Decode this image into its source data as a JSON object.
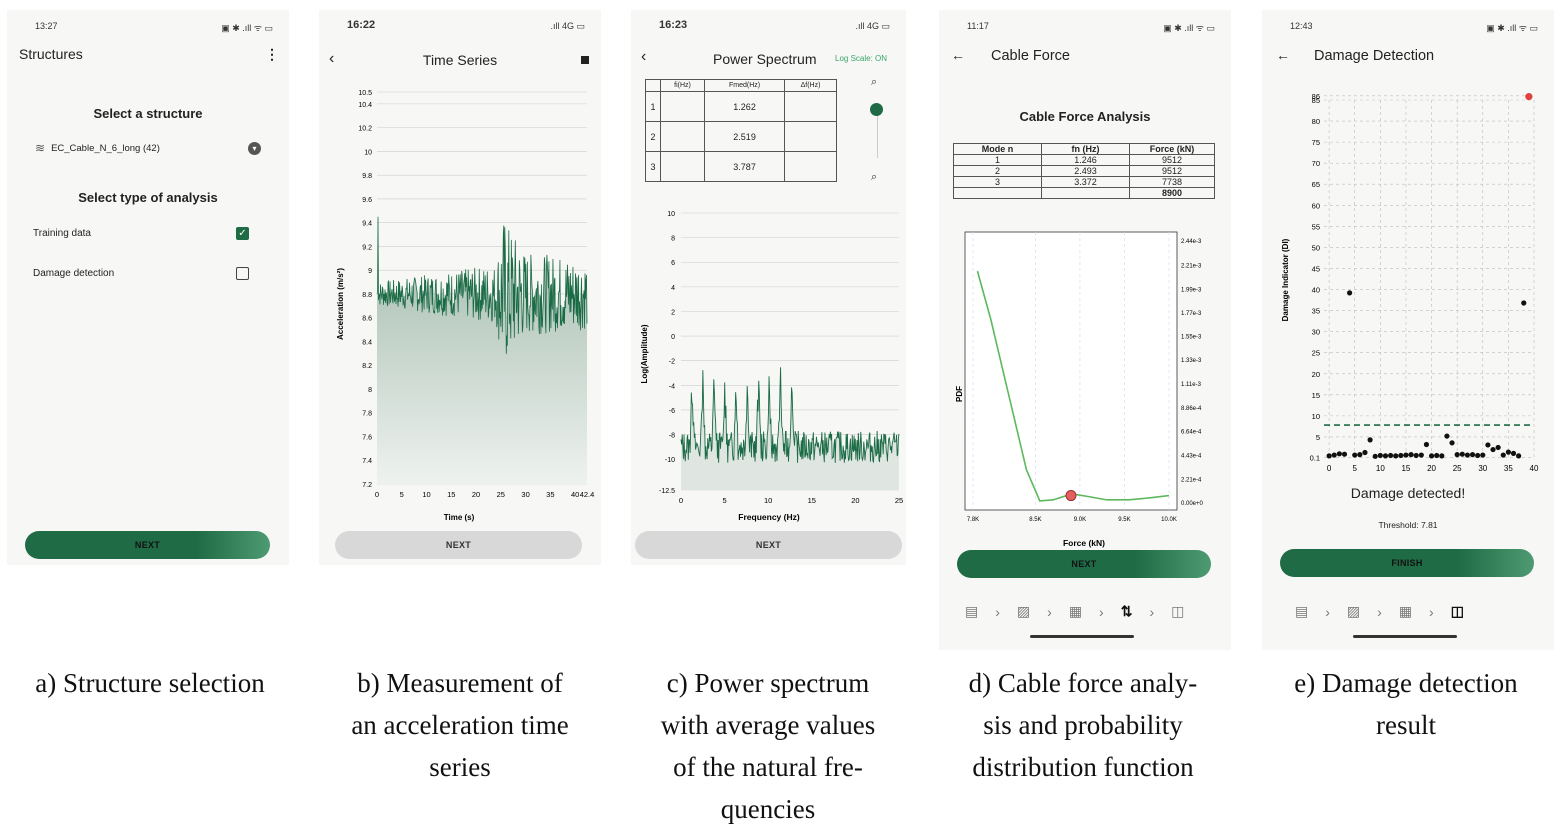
{
  "panel_a": {
    "status_time": "13:27",
    "status_right": "▣ ✱ .ıll ᯤ ▭",
    "title": "Structures",
    "menu_icon": "more-vert-icon",
    "select_structure_label": "Select a structure",
    "structure_value": "EC_Cable_N_6_long (42)",
    "select_analysis_label": "Select type of analysis",
    "option_training": "Training data",
    "option_damage": "Damage detection",
    "training_checked": true,
    "damage_checked": false,
    "next_label": "NEXT",
    "caption": "a) Structure selection"
  },
  "panel_b": {
    "status_time": "16:22",
    "status_right": ".ıll 4G ▭",
    "title": "Time Series",
    "next_label": "NEXT",
    "caption_lines": [
      "b) Measurement of",
      "an acceleration time",
      "series"
    ],
    "chart_data": {
      "type": "line",
      "title": "",
      "xlabel": "Time (s)",
      "ylabel": "Acceleration (m/s²)",
      "xlim": [
        0,
        42.4
      ],
      "ylim": [
        7.2,
        10.5
      ],
      "x_ticks": [
        "0",
        "5",
        "10",
        "15",
        "20",
        "25",
        "30",
        "35",
        "40",
        "42.4"
      ],
      "y_ticks": [
        "7.2",
        "7.4",
        "7.6",
        "7.8",
        "8",
        "8.2",
        "8.4",
        "8.6",
        "8.8",
        "9",
        "9.2",
        "9.4",
        "9.6",
        "9.8",
        "10",
        "10.2",
        "10.4",
        "10.5"
      ],
      "series": [
        {
          "name": "acceleration",
          "mean": 8.8,
          "envelope": [
            [
              0,
              0.1
            ],
            [
              24,
              0.25
            ],
            [
              25.5,
              0.65
            ],
            [
              30,
              0.35
            ],
            [
              42.4,
              0.3
            ]
          ],
          "samples": 420
        }
      ]
    }
  },
  "panel_c": {
    "status_time": "16:23",
    "status_right": ".ıll 4G ▭",
    "title": "Power Spectrum",
    "log_scale": "Log Scale: ON",
    "table_headers": [
      "",
      "fi(Hz)",
      "Fmed(Hz)",
      "Δf(Hz)"
    ],
    "table_rows": [
      [
        "1",
        "",
        "1.262",
        ""
      ],
      [
        "2",
        "",
        "2.519",
        ""
      ],
      [
        "3",
        "",
        "3.787",
        ""
      ]
    ],
    "zoom_in_icon": "zoom-in-icon",
    "zoom_out_icon": "zoom-out-icon",
    "zoom_level": 0.9,
    "next_label": "NEXT",
    "caption_lines": [
      "c) Power spectrum",
      "with average values",
      "of the natural fre-",
      "quencies"
    ],
    "chart_data": {
      "type": "line",
      "xlabel": "Frequency (Hz)",
      "ylabel": "Log(Amplitude)",
      "xlim": [
        0,
        25
      ],
      "ylim": [
        -12.5,
        10
      ],
      "x_ticks": [
        "0",
        "5",
        "10",
        "15",
        "20",
        "25"
      ],
      "y_ticks": [
        "-12.5",
        "-10",
        "-8",
        "-6",
        "-4",
        "-2",
        "0",
        "2",
        "4",
        "6",
        "8",
        "10"
      ],
      "peaks_hz": [
        1.262,
        2.519,
        3.787,
        5.0,
        6.3,
        7.6,
        8.9,
        10.1,
        11.4,
        12.7
      ],
      "baseline": -9
    }
  },
  "panel_d": {
    "status_time": "11:17",
    "status_right": "▣ ✱ .ıll ᯤ ▭",
    "title": "Cable Force",
    "analysis_title": "Cable Force Analysis",
    "table_headers": [
      "Mode n",
      "fn (Hz)",
      "Force (kN)"
    ],
    "table_rows": [
      [
        "1",
        "1.246",
        "9512"
      ],
      [
        "2",
        "2.493",
        "9512"
      ],
      [
        "3",
        "3.372",
        "7738"
      ]
    ],
    "table_total": "8900",
    "next_label": "NEXT",
    "nav_icons": [
      "list-icon",
      "chart-icon",
      "table-icon",
      "force-icon",
      "cube-icon"
    ],
    "caption_lines": [
      "d) Cable force analy-",
      "sis and probability",
      "distribution function"
    ],
    "chart_data": {
      "type": "line",
      "xlabel": "Force (kN)",
      "ylabel": "PDF",
      "x_ticks": [
        "7.8K",
        "8.5K",
        "9.0K",
        "9.5K",
        "10.0K"
      ],
      "xlim": [
        7.8,
        10.0
      ],
      "y_right_ticks": [
        "0.00e+0",
        "2.21e-4",
        "4.43e-4",
        "6.64e-4",
        "8.86e-4",
        "1.11e-3",
        "1.33e-3",
        "1.55e-3",
        "1.77e-3",
        "1.99e-3",
        "2.21e-3",
        "2.44e-3"
      ],
      "ylim": [
        0,
        0.00244
      ],
      "curve": [
        [
          7.85,
          0.00215
        ],
        [
          8.0,
          0.0017
        ],
        [
          8.2,
          0.001
        ],
        [
          8.4,
          0.0003
        ],
        [
          8.55,
          1e-05
        ],
        [
          8.7,
          2e-05
        ],
        [
          8.85,
          6e-05
        ],
        [
          8.95,
          7e-05
        ],
        [
          9.1,
          5e-05
        ],
        [
          9.3,
          2e-05
        ],
        [
          9.55,
          2e-05
        ],
        [
          9.8,
          4e-05
        ],
        [
          10.0,
          6e-05
        ]
      ],
      "marker": {
        "x": 8.9,
        "y": 6e-05
      }
    }
  },
  "panel_e": {
    "status_time": "12:43",
    "status_right": "▣ ✱ .ıll ᯤ ▭",
    "title": "Damage Detection",
    "result": "Damage detected!",
    "threshold": "Threshold: 7.81",
    "finish_label": "FINISH",
    "nav_icons": [
      "list-icon",
      "chart-icon",
      "table-icon",
      "cube-icon"
    ],
    "caption_lines": [
      "e) Damage detection",
      "result"
    ],
    "chart_data": {
      "type": "scatter",
      "ylabel": "Damage Indicator (DI)",
      "xlabel": "",
      "xlim": [
        -1,
        40
      ],
      "ylim": [
        0,
        85
      ],
      "x_ticks": [
        "0",
        "5",
        "10",
        "15",
        "20",
        "25",
        "30",
        "35",
        "40"
      ],
      "y_ticks": [
        "0.1",
        "5",
        "10",
        "15",
        "20",
        "25",
        "30",
        "35",
        "40",
        "45",
        "50",
        "55",
        "60",
        "65",
        "70",
        "75",
        "80",
        "85",
        "86"
      ],
      "threshold": 7.81,
      "points": [
        [
          0,
          0.5
        ],
        [
          1,
          0.7
        ],
        [
          2,
          1.0
        ],
        [
          3,
          0.9
        ],
        [
          4,
          39.2
        ],
        [
          5,
          0.7
        ],
        [
          6,
          0.8
        ],
        [
          7,
          1.3
        ],
        [
          8,
          4.3
        ],
        [
          9,
          0.4
        ],
        [
          10,
          0.6
        ],
        [
          11,
          0.5
        ],
        [
          12,
          0.6
        ],
        [
          13,
          0.5
        ],
        [
          14,
          0.6
        ],
        [
          15,
          0.7
        ],
        [
          16,
          0.8
        ],
        [
          17,
          0.6
        ],
        [
          18,
          0.7
        ],
        [
          19,
          3.2
        ],
        [
          20,
          0.5
        ],
        [
          21,
          0.6
        ],
        [
          22,
          0.5
        ],
        [
          23,
          5.2
        ],
        [
          24,
          3.6
        ],
        [
          25,
          0.8
        ],
        [
          26,
          0.9
        ],
        [
          27,
          0.7
        ],
        [
          28,
          0.8
        ],
        [
          29,
          0.6
        ],
        [
          30,
          0.7
        ],
        [
          31,
          3.1
        ],
        [
          32,
          2.0
        ],
        [
          33,
          2.5
        ],
        [
          34,
          0.7
        ],
        [
          35,
          1.4
        ],
        [
          36,
          1.1
        ],
        [
          37,
          0.5
        ],
        [
          38,
          36.8
        ],
        [
          39,
          85.8
        ]
      ],
      "highlight_index": 39
    }
  }
}
